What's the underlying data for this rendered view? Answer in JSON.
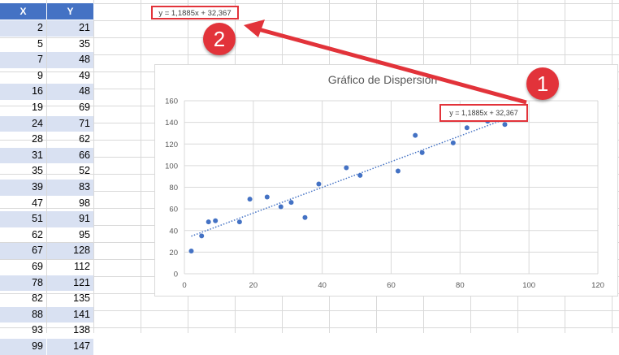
{
  "sheet": {
    "columns": [
      "X",
      "Y"
    ],
    "rows": [
      {
        "x": "2",
        "y": "21"
      },
      {
        "x": "5",
        "y": "35"
      },
      {
        "x": "7",
        "y": "48"
      },
      {
        "x": "9",
        "y": "49"
      },
      {
        "x": "16",
        "y": "48"
      },
      {
        "x": "19",
        "y": "69"
      },
      {
        "x": "24",
        "y": "71"
      },
      {
        "x": "28",
        "y": "62"
      },
      {
        "x": "31",
        "y": "66"
      },
      {
        "x": "35",
        "y": "52"
      },
      {
        "x": "39",
        "y": "83"
      },
      {
        "x": "47",
        "y": "98"
      },
      {
        "x": "51",
        "y": "91"
      },
      {
        "x": "62",
        "y": "95"
      },
      {
        "x": "67",
        "y": "128"
      },
      {
        "x": "69",
        "y": "112"
      },
      {
        "x": "78",
        "y": "121"
      },
      {
        "x": "82",
        "y": "135"
      },
      {
        "x": "88",
        "y": "141"
      },
      {
        "x": "93",
        "y": "138"
      },
      {
        "x": "99",
        "y": "147"
      }
    ]
  },
  "equation_cell": "y = 1,1885x + 32,367",
  "annotations": {
    "badge_1": "1",
    "badge_2": "2",
    "accent_color": "#e2333a"
  },
  "chart_data": {
    "type": "scatter",
    "title": "Gráfico de Dispersión",
    "x": [
      2,
      5,
      7,
      9,
      16,
      19,
      24,
      28,
      31,
      35,
      39,
      47,
      51,
      62,
      67,
      69,
      78,
      82,
      88,
      93,
      99
    ],
    "y": [
      21,
      35,
      48,
      49,
      48,
      69,
      71,
      62,
      66,
      52,
      83,
      98,
      91,
      95,
      128,
      112,
      121,
      135,
      141,
      138,
      147
    ],
    "trendline": {
      "type": "linear",
      "slope": 1.1885,
      "intercept": 32.367,
      "equation": "y = 1,1885x + 32,367",
      "style": "dotted"
    },
    "xlim": [
      0,
      120
    ],
    "ylim": [
      0,
      160
    ],
    "xticks": [
      "0",
      "20",
      "40",
      "60",
      "80",
      "100",
      "120"
    ],
    "yticks": [
      "0",
      "20",
      "40",
      "60",
      "80",
      "100",
      "120",
      "140",
      "160"
    ],
    "grid": true,
    "marker_color": "#4472c4"
  }
}
